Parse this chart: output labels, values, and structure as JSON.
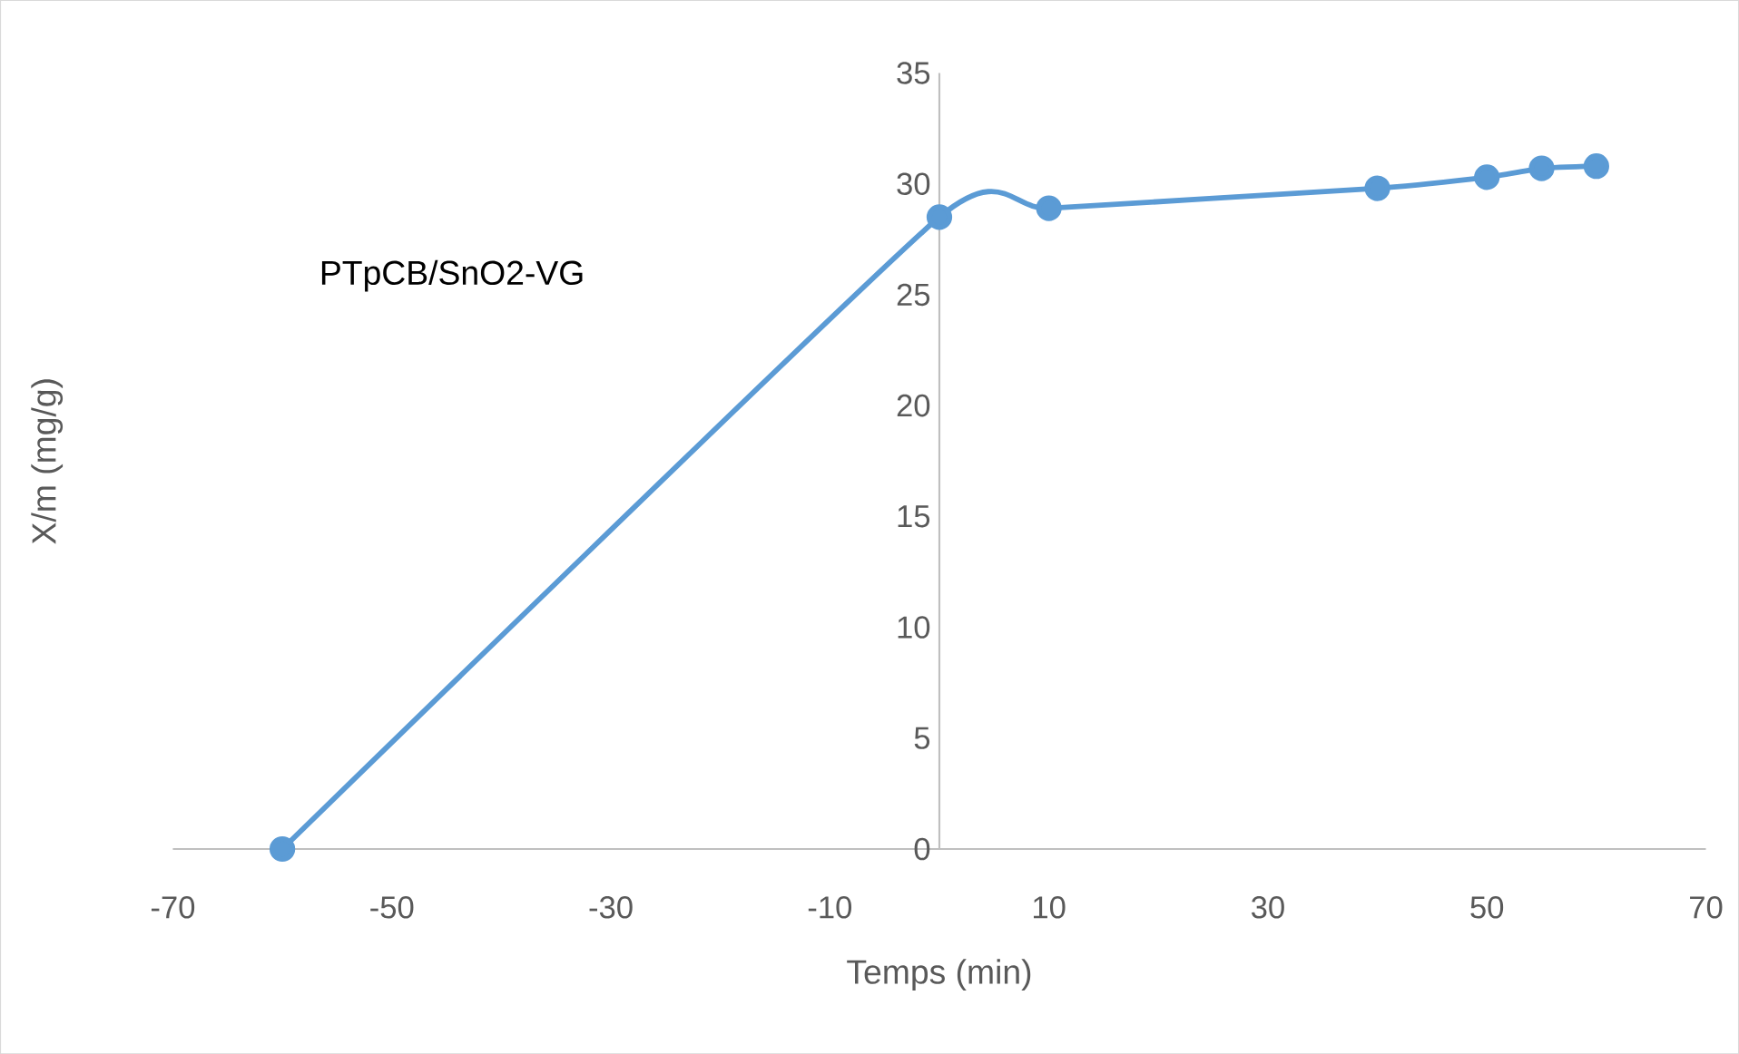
{
  "chart_data": {
    "type": "line",
    "title": "PTpCB/SnO2-VG",
    "xlabel": "Temps (min)",
    "ylabel": "X/m (mg/g)",
    "x": [
      -60,
      0,
      10,
      40,
      50,
      55,
      60
    ],
    "series": [
      {
        "color": "#5b9bd5",
        "values": [
          0,
          28.5,
          28.9,
          29.8,
          30.3,
          30.7,
          30.8
        ]
      }
    ],
    "xlim": [
      -70,
      70
    ],
    "xticks": [
      -70,
      -50,
      -30,
      -10,
      10,
      30,
      50,
      70
    ],
    "ylim": [
      0,
      35
    ],
    "yticks": [
      0,
      5,
      10,
      15,
      20,
      25,
      30,
      35
    ],
    "marker": "circle",
    "line_style": "solid",
    "grid": false
  }
}
